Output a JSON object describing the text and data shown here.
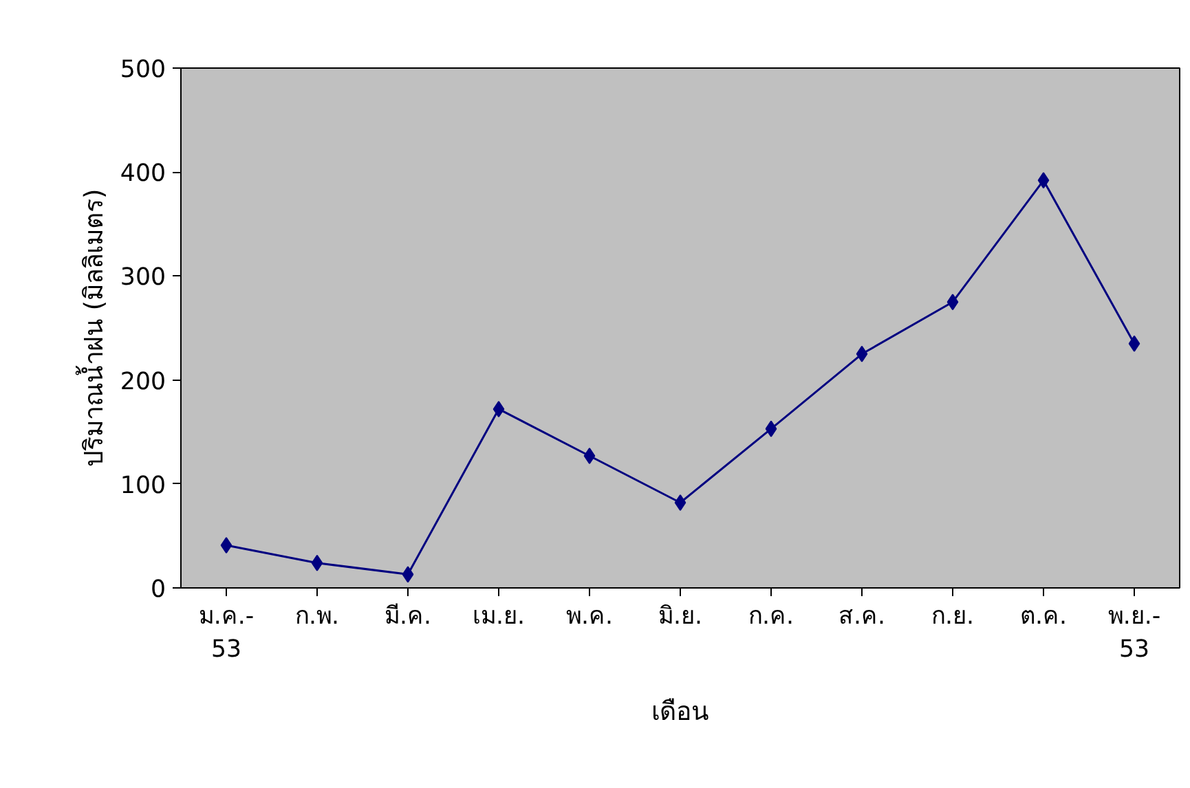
{
  "chart_data": {
    "type": "line",
    "xlabel": "เดือน",
    "ylabel": "ปริมาณน้ำฝน (มิลลิเมตร)",
    "categories": [
      "ม.ค.-53",
      "ก.พ.",
      "มี.ค.",
      "เม.ย.",
      "พ.ค.",
      "มิ.ย.",
      "ก.ค.",
      "ส.ค.",
      "ก.ย.",
      "ต.ค.",
      "พ.ย.-53"
    ],
    "series": [
      {
        "color": "#000080",
        "values": [
          41,
          24,
          13,
          172,
          127,
          82,
          153,
          225,
          275,
          392,
          235
        ]
      }
    ],
    "ylim": [
      0,
      500
    ],
    "yticks": [
      0,
      100,
      200,
      300,
      400,
      500
    ],
    "grid": false,
    "marker": "diamond",
    "line_style": "solid"
  }
}
